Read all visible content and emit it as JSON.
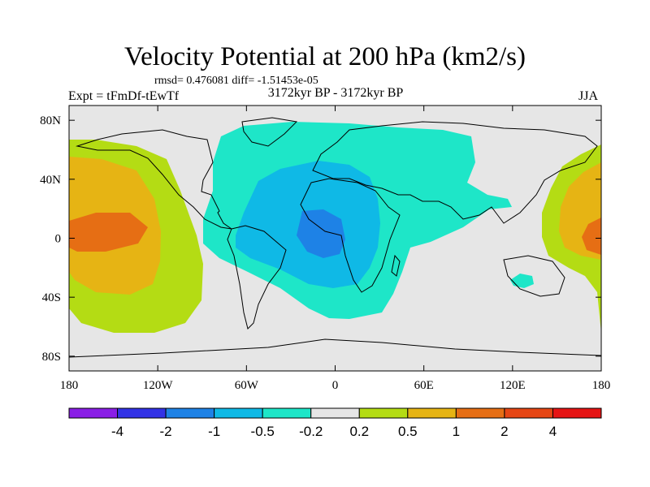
{
  "chart_data": {
    "type": "heatmap",
    "title": "Velocity Potential at 200 hPa (km2/s)",
    "stats_text": "rmsd= 0.476081  diff= -1.51453e-05",
    "left_label": "Expt = tFmDf-tEwTf",
    "center_label": "3172kyr BP - 3172kyr BP",
    "right_label": "JJA",
    "x_axis": {
      "range": [
        -180,
        180
      ],
      "ticks": [
        -180,
        -120,
        -60,
        0,
        60,
        120,
        180
      ],
      "tick_labels": [
        "180",
        "120W",
        "60W",
        "0",
        "60E",
        "120E",
        "180"
      ]
    },
    "y_axis": {
      "range": [
        -90,
        90
      ],
      "ticks": [
        80,
        40,
        0,
        -40,
        -80
      ],
      "tick_labels": [
        "80N",
        "40N",
        "0",
        "40S",
        "80S"
      ]
    },
    "colorbar": {
      "levels": [
        "-4",
        "-2",
        "-1",
        "-0.5",
        "-0.2",
        "0.2",
        "0.5",
        "1",
        "2",
        "4"
      ],
      "colors": [
        "#8a1ee6",
        "#3232e6",
        "#1e82e6",
        "#0fb9e6",
        "#1ee6c8",
        "#e6e6e6",
        "#b4dc14",
        "#e6b414",
        "#e66e14",
        "#e64614",
        "#e61414"
      ]
    },
    "regions": [
      {
        "name": "pacific-positive-outer",
        "category": "0.2 to 0.5",
        "center": [
          -150,
          0
        ]
      },
      {
        "name": "pacific-positive-mid",
        "category": "0.5 to 1",
        "center": [
          -150,
          0
        ]
      },
      {
        "name": "pacific-positive-core",
        "category": "1 to 2",
        "center": [
          -160,
          5
        ]
      },
      {
        "name": "atlantic-africa-negative-outer",
        "category": "-0.5 to -0.2",
        "center": [
          10,
          30
        ]
      },
      {
        "name": "atlantic-africa-negative-mid",
        "category": "-1 to -0.5",
        "center": [
          -10,
          15
        ]
      },
      {
        "name": "africa-negative-core",
        "category": "-2 to -1",
        "center": [
          -5,
          0
        ]
      },
      {
        "name": "west-pacific-positive-core",
        "category": "1 to 2",
        "center": [
          175,
          0
        ]
      }
    ]
  }
}
